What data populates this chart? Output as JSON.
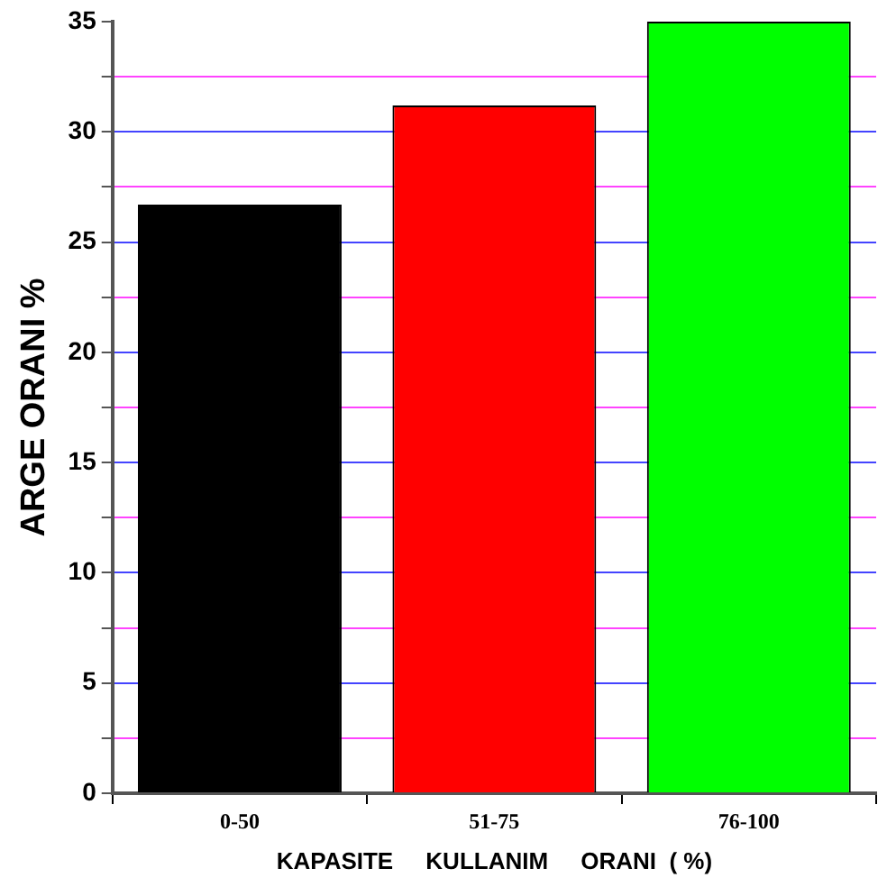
{
  "chart_data": {
    "type": "bar",
    "xlabel": "KAPASITE     KULLANIM     ORANI  ( %)",
    "ylabel": "ARGE ORANI %",
    "categories": [
      "0-50",
      "51-75",
      "76-100"
    ],
    "values": [
      26.7,
      31.2,
      35
    ],
    "colors": [
      "#000000",
      "#ff0000",
      "#00ff00"
    ],
    "ylim": [
      0,
      35
    ],
    "yticks": [
      0,
      {
        "value": 2.5,
        "label": null
      },
      5,
      {
        "value": 7.5,
        "label": null
      },
      10,
      {
        "value": 12.5,
        "label": null
      },
      15,
      {
        "value": 17.5,
        "label": null
      },
      20,
      {
        "value": 22.5,
        "label": null
      },
      25,
      {
        "value": 27.5,
        "label": null
      },
      30,
      {
        "value": 32.5,
        "label": null
      },
      35
    ],
    "grid": "y",
    "legend": false
  }
}
